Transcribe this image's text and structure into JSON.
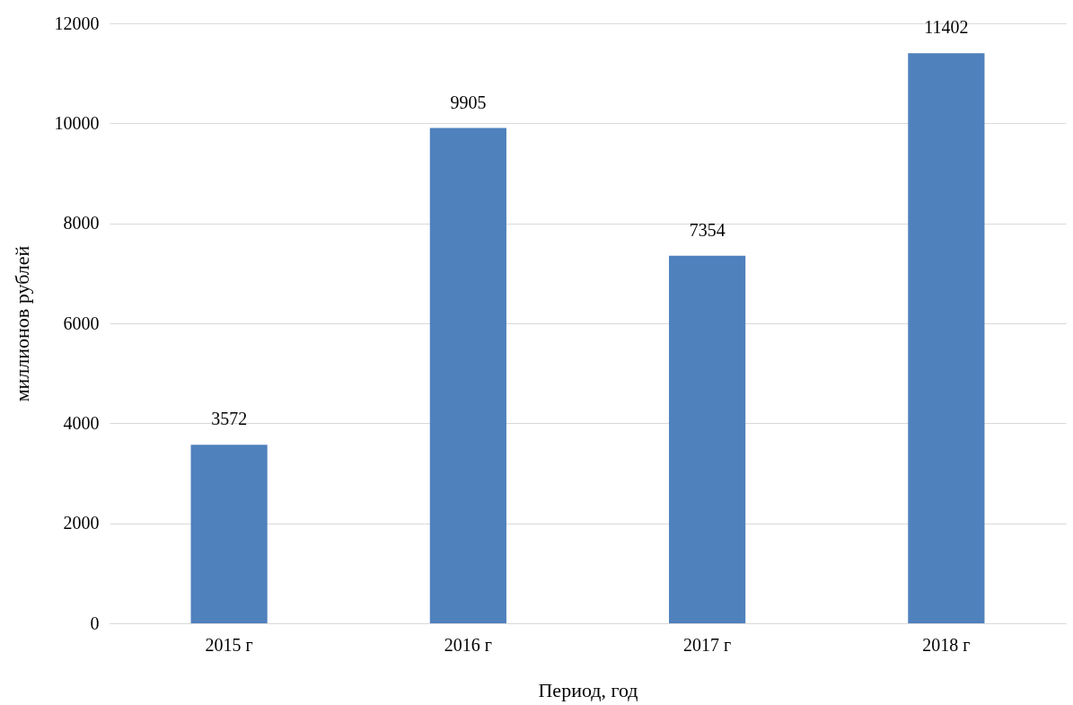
{
  "chart_data": {
    "type": "bar",
    "xlabel": "Период, год",
    "ylabel": "миллионов рублей",
    "categories": [
      "2015 г",
      "2016 г",
      "2017 г",
      "2018 г"
    ],
    "values": [
      3572,
      9905,
      7354,
      11402
    ],
    "color": "#4f81bd",
    "ylim": [
      0,
      12000
    ],
    "yticks": [
      0,
      2000,
      4000,
      6000,
      8000,
      10000,
      12000
    ],
    "grid": "y",
    "data_labels": true
  }
}
